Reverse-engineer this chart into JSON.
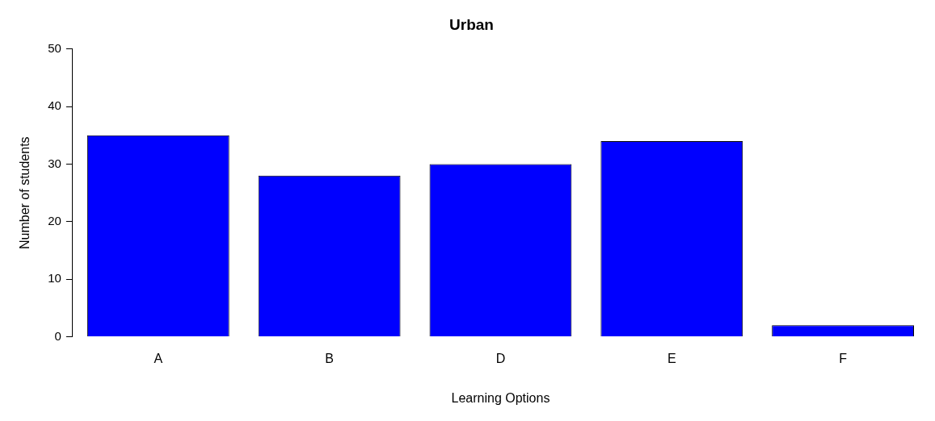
{
  "chart_data": {
    "type": "bar",
    "title": "Urban",
    "xlabel": "Learning Options",
    "ylabel": "Number of students",
    "categories": [
      "A",
      "B",
      "D",
      "E",
      "F"
    ],
    "values": [
      35,
      28,
      30,
      34,
      2
    ],
    "color": "#0000ff",
    "ylim": [
      0,
      50
    ],
    "yticks": [
      0,
      10,
      20,
      30,
      40,
      50
    ],
    "grid": false,
    "legend": false
  }
}
